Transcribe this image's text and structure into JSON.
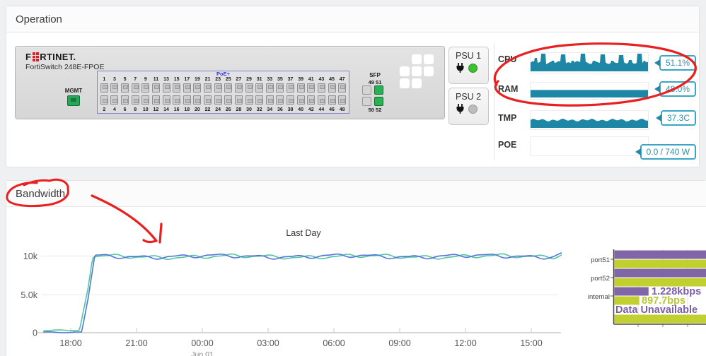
{
  "operation_panel": {
    "title": "Operation",
    "switch": {
      "brand_f": "F",
      "brand_rest": "RTINET.",
      "model": "FortiSwitch 248E-FPOE",
      "mgmt_label": "MGMT",
      "poe_label": "PoE+",
      "sfp_label": "SFP",
      "top_port_numbers": [
        "1",
        "3",
        "5",
        "7",
        "9",
        "11",
        "13",
        "15",
        "17",
        "19",
        "21",
        "23",
        "25",
        "27",
        "29",
        "31",
        "33",
        "35",
        "37",
        "39",
        "41",
        "43",
        "45",
        "47"
      ],
      "bottom_port_numbers": [
        "2",
        "4",
        "6",
        "8",
        "10",
        "12",
        "14",
        "16",
        "18",
        "20",
        "22",
        "24",
        "26",
        "28",
        "30",
        "32",
        "34",
        "36",
        "38",
        "40",
        "42",
        "44",
        "46",
        "48"
      ],
      "sfp_top_numbers": "49 51",
      "sfp_bottom_numbers": "50 52",
      "sfp_ports": [
        {
          "id": "49",
          "on": false
        },
        {
          "id": "51",
          "on": true
        },
        {
          "id": "50",
          "on": false
        },
        {
          "id": "52",
          "on": true
        }
      ]
    },
    "psus": [
      {
        "label": "PSU 1",
        "on": true
      },
      {
        "label": "PSU 2",
        "on": false
      }
    ],
    "gauges": [
      {
        "label": "CPU",
        "value": "51.1%",
        "style": "spiky"
      },
      {
        "label": "RAM",
        "value": "48.0%",
        "style": "flat",
        "level": 0.48
      },
      {
        "label": "TMP",
        "value": "37.3C",
        "style": "noisy",
        "level": 0.46
      },
      {
        "label": "POE",
        "value": "0.0 / 740 W",
        "style": "empty",
        "level": 0
      }
    ],
    "gauge_color": "#1f87a6",
    "badge_border": "#3aa5c4",
    "badge_text": "#2d93b0"
  },
  "bandwidth_panel": {
    "title": "Bandwidth"
  },
  "chart_data": [
    {
      "type": "line",
      "title": "Last Day",
      "y_ticks": [
        "10k",
        "5.0k",
        "0"
      ],
      "ylim": [
        0,
        10800
      ],
      "x_ticks": [
        "18:00",
        "21:00",
        "00:00",
        "03:00",
        "06:00",
        "09:00",
        "12:00",
        "15:00"
      ],
      "x_sub_label": "Jun 01",
      "grid": true,
      "legend": "none",
      "series": [
        {
          "name": "series-green",
          "color": "#52c6a2",
          "points": [
            [
              16.8,
              300
            ],
            [
              18.4,
              320
            ],
            [
              18.75,
              5200
            ],
            [
              19.0,
              9900
            ],
            [
              28.0,
              9930
            ],
            [
              40.0,
              9950
            ],
            [
              40.4,
              10350
            ]
          ]
        },
        {
          "name": "series-blue",
          "color": "#5277d8",
          "points": [
            [
              16.8,
              60
            ],
            [
              18.5,
              40
            ],
            [
              18.85,
              5400
            ],
            [
              19.1,
              9950
            ],
            [
              28.0,
              9960
            ],
            [
              40.0,
              9980
            ],
            [
              40.4,
              10430
            ]
          ]
        }
      ],
      "x_unit_hours_from": "17:00 May 31 to 16:00 Jun 01"
    },
    {
      "type": "bar",
      "orientation": "horizontal",
      "categories": [
        "port51",
        "port52",
        "internal",
        ""
      ],
      "series": [
        {
          "name": "in",
          "color": "#8066a7",
          "frac": [
            1,
            1,
            0.37,
            0
          ],
          "display": [
            "clipped",
            "clipped",
            "1.228kbps",
            "Data Unavailable"
          ]
        },
        {
          "name": "out",
          "color": "#c1d02f",
          "frac": [
            1,
            1,
            0.27,
            1
          ],
          "display": [
            "clipped",
            "clipped",
            "897.7bps",
            "clipped"
          ]
        }
      ],
      "value_label_colors": {
        "in": "#7b5ea7",
        "out": "#b9c72e"
      }
    }
  ],
  "annotation_color": "#ea1f1f"
}
